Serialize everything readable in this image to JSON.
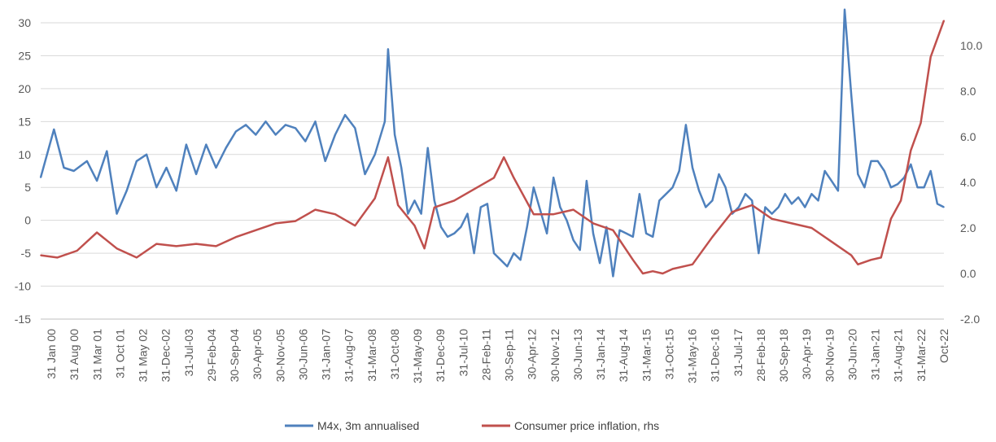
{
  "chart_data": {
    "type": "line",
    "title": "",
    "xlabel": "",
    "ylabel": "",
    "y2label": "",
    "ylim": [
      -15,
      30
    ],
    "y2lim": [
      -2,
      11
    ],
    "y_ticks": [
      "30",
      "25",
      "20",
      "15",
      "10",
      "5",
      "0",
      "-5",
      "-10",
      "-15"
    ],
    "y2_ticks": [
      "10.0",
      "8.0",
      "6.0",
      "4.0",
      "2.0",
      "0.0",
      "-2.0"
    ],
    "x_tick_labels": [
      "31 Jan 00",
      "31 Aug 00",
      "31 Mar 01",
      "31 Oct 01",
      "31 May 02",
      "31-Dec-02",
      "31-Jul-03",
      "29-Feb-04",
      "30-Sep-04",
      "30-Apr-05",
      "30-Nov-05",
      "30-Jun-06",
      "31-Jan-07",
      "31-Aug-07",
      "31-Mar-08",
      "31-Oct-08",
      "31-May-09",
      "31-Dec-09",
      "31-Jul-10",
      "28-Feb-11",
      "30-Sep-11",
      "30-Apr-12",
      "30-Nov-12",
      "30-Jun-13",
      "31-Jan-14",
      "31-Aug-14",
      "31-Mar-15",
      "31-Oct-15",
      "31-May-16",
      "31-Dec-16",
      "31-Jul-17",
      "28-Feb-18",
      "30-Sep-18",
      "30-Apr-19",
      "30-Nov-19",
      "30-Jun-20",
      "31-Jan-21",
      "31-Aug-21",
      "31-Mar-22",
      "Oct-22"
    ],
    "legend_position": "bottom",
    "grid": "horizontal",
    "series": [
      {
        "name": "M4x, 3m annualised",
        "axis": "left",
        "color": "#4f81bd",
        "x": [
          "2000-01",
          "2000-05",
          "2000-08",
          "2000-11",
          "2001-03",
          "2001-06",
          "2001-09",
          "2001-12",
          "2002-03",
          "2002-06",
          "2002-09",
          "2002-12",
          "2003-03",
          "2003-06",
          "2003-09",
          "2003-12",
          "2004-03",
          "2004-06",
          "2004-09",
          "2004-12",
          "2005-03",
          "2005-06",
          "2005-09",
          "2005-12",
          "2006-03",
          "2006-06",
          "2006-09",
          "2006-12",
          "2007-03",
          "2007-06",
          "2007-09",
          "2007-12",
          "2008-03",
          "2008-06",
          "2008-09",
          "2008-10",
          "2008-12",
          "2009-02",
          "2009-04",
          "2009-06",
          "2009-08",
          "2009-10",
          "2009-12",
          "2010-02",
          "2010-04",
          "2010-06",
          "2010-08",
          "2010-10",
          "2010-12",
          "2011-02",
          "2011-04",
          "2011-06",
          "2011-08",
          "2011-10",
          "2011-12",
          "2012-02",
          "2012-04",
          "2012-06",
          "2012-08",
          "2012-10",
          "2012-12",
          "2013-02",
          "2013-04",
          "2013-06",
          "2013-08",
          "2013-10",
          "2013-12",
          "2014-02",
          "2014-04",
          "2014-06",
          "2014-08",
          "2014-10",
          "2014-12",
          "2015-02",
          "2015-04",
          "2015-06",
          "2015-08",
          "2015-10",
          "2015-12",
          "2016-02",
          "2016-04",
          "2016-06",
          "2016-08",
          "2016-10",
          "2016-12",
          "2017-02",
          "2017-04",
          "2017-06",
          "2017-08",
          "2017-10",
          "2017-12",
          "2018-02",
          "2018-04",
          "2018-06",
          "2018-08",
          "2018-10",
          "2018-12",
          "2019-02",
          "2019-04",
          "2019-06",
          "2019-08",
          "2019-10",
          "2019-12",
          "2020-02",
          "2020-04",
          "2020-06",
          "2020-08",
          "2020-10",
          "2020-12",
          "2021-02",
          "2021-04",
          "2021-06",
          "2021-08",
          "2021-10",
          "2021-12",
          "2022-02",
          "2022-04",
          "2022-06",
          "2022-08",
          "2022-10"
        ],
        "values": [
          6.5,
          13.8,
          8.0,
          7.5,
          9.0,
          6.0,
          10.5,
          1.0,
          4.5,
          9.0,
          10.0,
          5.0,
          8.0,
          4.5,
          11.5,
          7.0,
          11.5,
          8.0,
          11.0,
          13.5,
          14.5,
          13.0,
          15.0,
          13.0,
          14.5,
          14.0,
          12.0,
          15.0,
          9.0,
          13.0,
          16.0,
          14.0,
          7.0,
          10.0,
          15.0,
          26.0,
          13.0,
          8.0,
          1.0,
          3.0,
          1.0,
          11.0,
          3.0,
          -1.0,
          -2.5,
          -2.0,
          -1.0,
          1.0,
          -5.0,
          2.0,
          2.5,
          -5.0,
          -6.0,
          -7.0,
          -5.0,
          -6.0,
          -1.0,
          5.0,
          1.5,
          -2.0,
          6.5,
          2.0,
          0.0,
          -3.0,
          -4.5,
          6.0,
          -2.0,
          -6.5,
          -1.0,
          -8.5,
          -1.5,
          -2.0,
          -2.5,
          4.0,
          -2.0,
          -2.5,
          3.0,
          4.0,
          5.0,
          7.5,
          14.5,
          8.0,
          4.5,
          2.0,
          3.0,
          7.0,
          5.0,
          1.0,
          2.0,
          4.0,
          3.0,
          -5.0,
          2.0,
          1.0,
          2.0,
          4.0,
          2.5,
          3.5,
          2.0,
          4.0,
          3.0,
          7.5,
          6.0,
          4.5,
          32.0,
          19.0,
          7.0,
          5.0,
          9.0,
          9.0,
          7.5,
          5.0,
          5.5,
          6.5,
          8.5,
          5.0,
          5.0,
          7.5,
          2.5,
          2.0
        ]
      },
      {
        "name": "Consumer price inflation, rhs",
        "axis": "right",
        "color": "#c0504d",
        "x": [
          "2000-01",
          "2000-06",
          "2000-12",
          "2001-06",
          "2001-12",
          "2002-06",
          "2002-12",
          "2003-06",
          "2003-12",
          "2004-06",
          "2004-12",
          "2005-06",
          "2005-12",
          "2006-06",
          "2006-12",
          "2007-06",
          "2007-12",
          "2008-06",
          "2008-10",
          "2009-01",
          "2009-06",
          "2009-09",
          "2009-12",
          "2010-06",
          "2010-12",
          "2011-06",
          "2011-09",
          "2011-12",
          "2012-06",
          "2012-12",
          "2013-06",
          "2013-12",
          "2014-06",
          "2014-12",
          "2015-03",
          "2015-06",
          "2015-09",
          "2015-12",
          "2016-06",
          "2016-12",
          "2017-06",
          "2017-12",
          "2018-06",
          "2018-12",
          "2019-06",
          "2019-12",
          "2020-06",
          "2020-08",
          "2020-12",
          "2021-03",
          "2021-06",
          "2021-09",
          "2021-12",
          "2022-03",
          "2022-06",
          "2022-10"
        ],
        "values": [
          0.8,
          0.7,
          1.0,
          1.8,
          1.1,
          0.7,
          1.3,
          1.2,
          1.3,
          1.2,
          1.6,
          1.9,
          2.2,
          2.3,
          2.8,
          2.6,
          2.1,
          3.3,
          5.1,
          3.0,
          2.1,
          1.1,
          2.9,
          3.2,
          3.7,
          4.2,
          5.1,
          4.2,
          2.6,
          2.6,
          2.8,
          2.2,
          1.9,
          0.6,
          0.0,
          0.1,
          0.0,
          0.2,
          0.4,
          1.6,
          2.7,
          3.0,
          2.4,
          2.2,
          2.0,
          1.4,
          0.8,
          0.4,
          0.6,
          0.7,
          2.4,
          3.2,
          5.4,
          6.6,
          9.5,
          11.1
        ]
      }
    ]
  },
  "legend": {
    "items": [
      {
        "label": "M4x, 3m annualised",
        "color": "#4f81bd"
      },
      {
        "label": "Consumer price inflation, rhs",
        "color": "#c0504d"
      }
    ]
  }
}
